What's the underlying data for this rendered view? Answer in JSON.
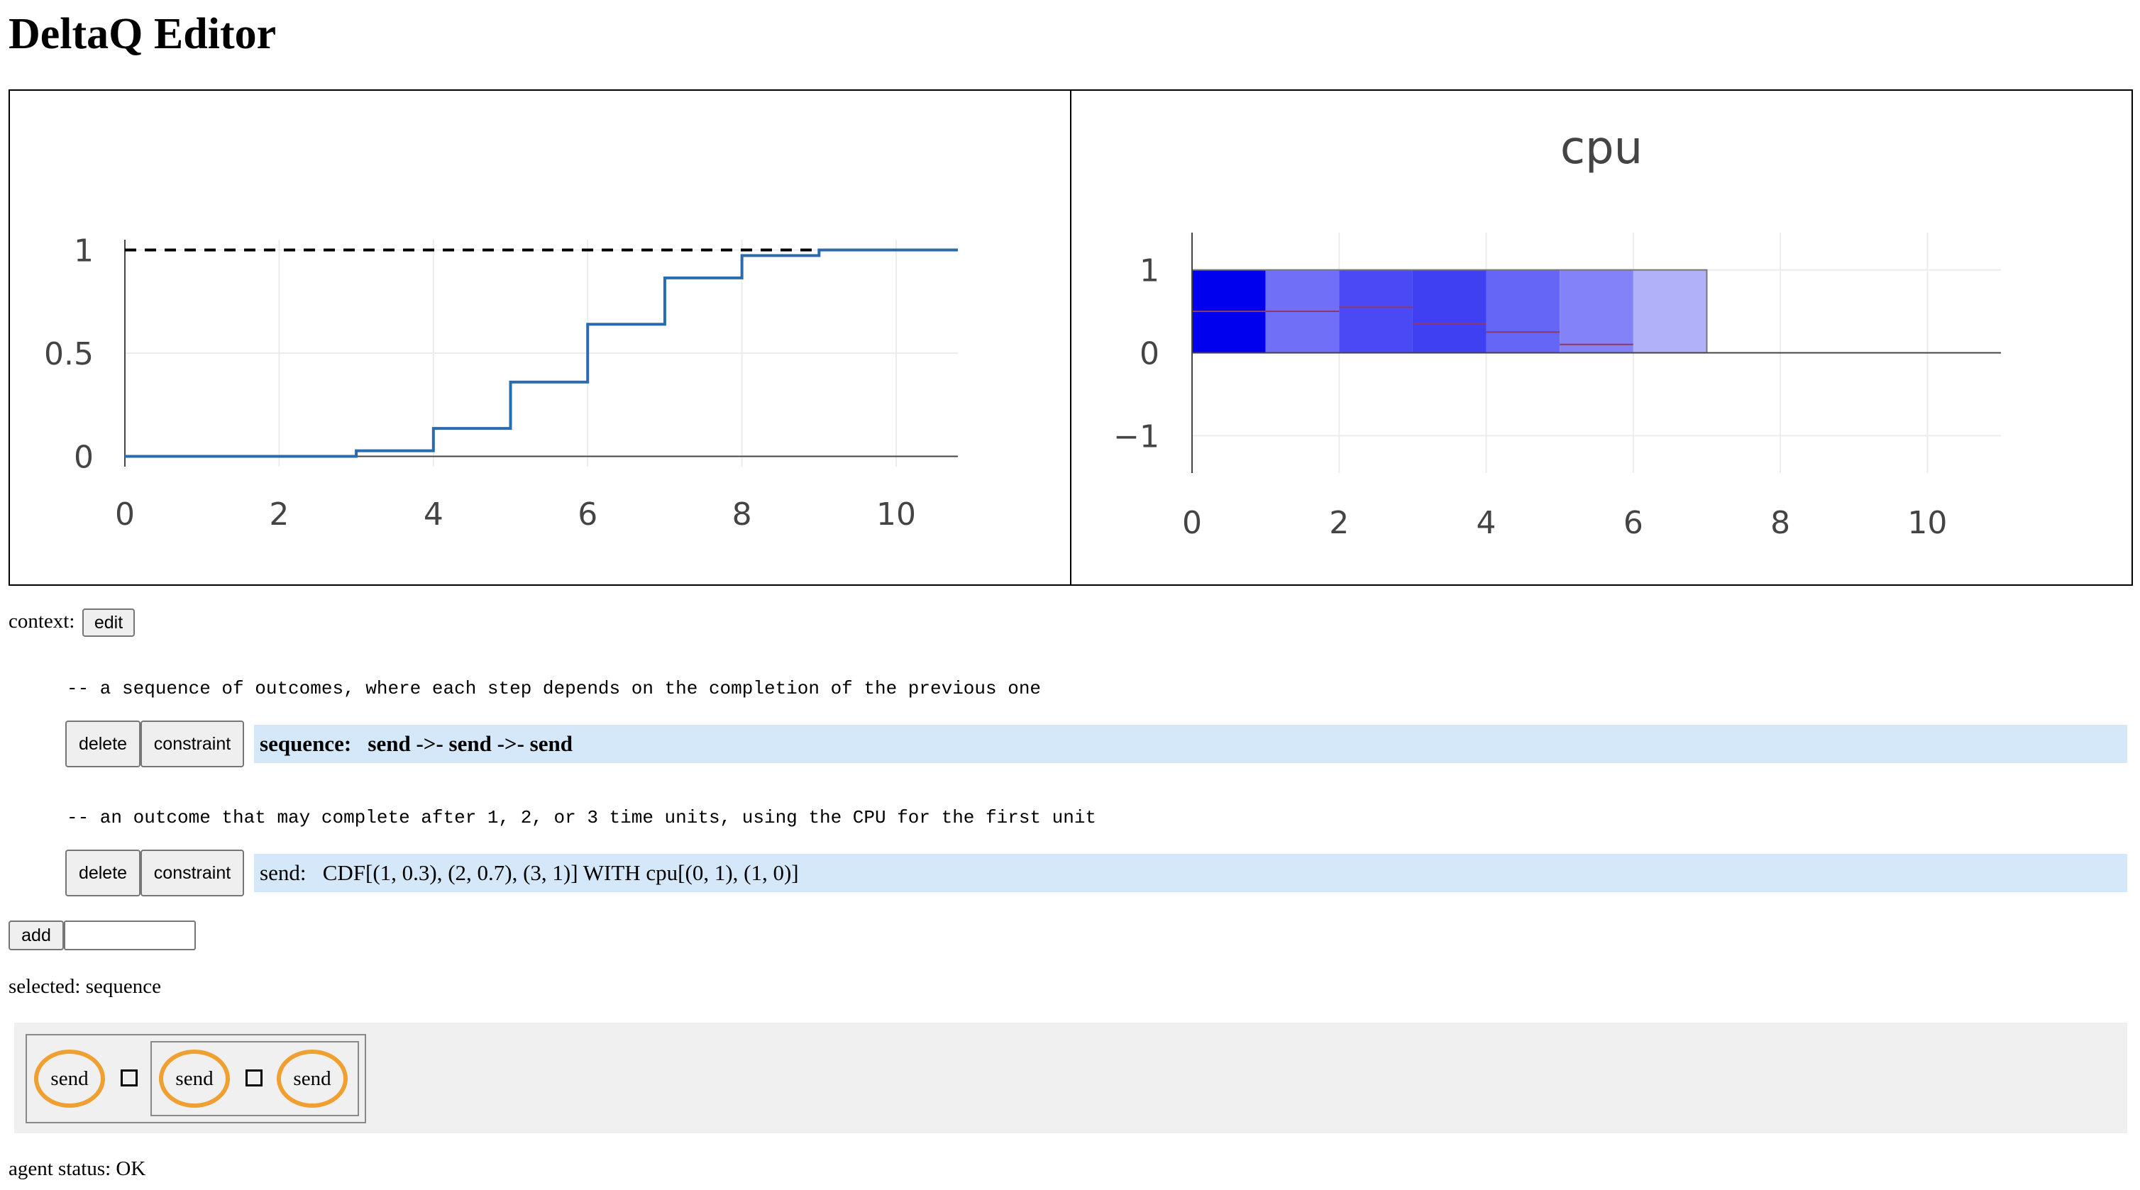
{
  "app": {
    "title": "DeltaQ Editor"
  },
  "chart_data": [
    {
      "type": "line",
      "title": "",
      "xlabel": "",
      "ylabel": "",
      "step": true,
      "x_ticks": [
        "0",
        "2",
        "4",
        "6",
        "8",
        "10"
      ],
      "y_ticks": [
        "0",
        "0.5",
        "1"
      ],
      "xlim": [
        0,
        10.8
      ],
      "ylim": [
        -0.05,
        1.05
      ],
      "series": [
        {
          "color": "#2a6bb0",
          "x": [
            0,
            3,
            3,
            4,
            4,
            5,
            5,
            6,
            6,
            7,
            7,
            8,
            8,
            9,
            9,
            10.8
          ],
          "y": [
            0,
            0,
            0.027,
            0.027,
            0.135,
            0.135,
            0.36,
            0.36,
            0.64,
            0.64,
            0.865,
            0.865,
            0.973,
            0.973,
            1,
            1
          ]
        }
      ],
      "reference_line": {
        "y": 1,
        "style": "dashed",
        "color": "#000000"
      },
      "grid": true
    },
    {
      "type": "heatmap",
      "title": "cpu",
      "xlabel": "",
      "ylabel": "",
      "x_ticks": [
        "0",
        "2",
        "4",
        "6",
        "8",
        "10"
      ],
      "y_ticks": [
        "−1",
        "0",
        "1"
      ],
      "xlim": [
        0,
        11
      ],
      "ylim": [
        -1.45,
        1.45
      ],
      "cells": [
        {
          "x0": 0,
          "x1": 1,
          "color": "#0000ee",
          "level": 0.5
        },
        {
          "x0": 1,
          "x1": 2,
          "color": "#6f6ff7",
          "level": 0.5
        },
        {
          "x0": 2,
          "x1": 3,
          "color": "#4a4af4",
          "level": 0.55
        },
        {
          "x0": 3,
          "x1": 4,
          "color": "#4040f3",
          "level": 0.35
        },
        {
          "x0": 4,
          "x1": 5,
          "color": "#6666f6",
          "level": 0.25
        },
        {
          "x0": 5,
          "x1": 6,
          "color": "#8383f7",
          "level": 0.1
        },
        {
          "x0": 6,
          "x1": 7,
          "color": "#b1b1f9",
          "level": 0
        }
      ],
      "grid": true
    }
  ],
  "context": {
    "label": "context:",
    "edit_button": "edit"
  },
  "definitions": [
    {
      "comment": "-- a sequence of outcomes, where each step depends on the completion of the previous one",
      "delete_button": "delete",
      "constraint_button": "constraint",
      "name": "sequence:",
      "expression": "send ->- send ->- send",
      "selected": true
    },
    {
      "comment": "-- an outcome that may complete after 1, 2, or 3 time units, using the CPU for the first unit",
      "delete_button": "delete",
      "constraint_button": "constraint",
      "name": "send:",
      "expression": "CDF[(1, 0.3), (2, 0.7), (3, 1)] WITH cpu[(0, 1), (1, 0)]",
      "selected": false
    }
  ],
  "add": {
    "button": "add",
    "input_value": ""
  },
  "selected": {
    "text": "selected: sequence"
  },
  "diagram": {
    "outcome_color": "#f0a030",
    "outcomes": [
      "send",
      "send",
      "send"
    ]
  },
  "status": {
    "text": "agent status: OK"
  }
}
